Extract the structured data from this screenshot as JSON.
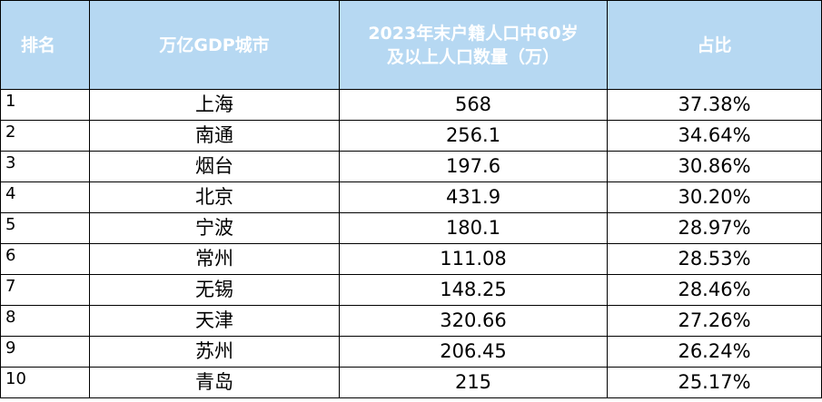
{
  "table": {
    "headers": {
      "rank": "排名",
      "city": "万亿GDP城市",
      "elderly_population_line1": "2023年末户籍人口中60岁",
      "elderly_population_line2": "及以上人口数量（万）",
      "share": "占比"
    },
    "rows": [
      {
        "rank": "1",
        "city": "上海",
        "elderly_population": "568",
        "share": "37.38%"
      },
      {
        "rank": "2",
        "city": "南通",
        "elderly_population": "256.1",
        "share": "34.64%"
      },
      {
        "rank": "3",
        "city": "烟台",
        "elderly_population": "197.6",
        "share": "30.86%"
      },
      {
        "rank": "4",
        "city": "北京",
        "elderly_population": "431.9",
        "share": "30.20%"
      },
      {
        "rank": "5",
        "city": "宁波",
        "elderly_population": "180.1",
        "share": "28.97%"
      },
      {
        "rank": "6",
        "city": "常州",
        "elderly_population": "111.08",
        "share": "28.53%"
      },
      {
        "rank": "7",
        "city": "无锡",
        "elderly_population": "148.25",
        "share": "28.46%"
      },
      {
        "rank": "8",
        "city": "天津",
        "elderly_population": "320.66",
        "share": "27.26%"
      },
      {
        "rank": "9",
        "city": "苏州",
        "elderly_population": "206.45",
        "share": "26.24%"
      },
      {
        "rank": "10",
        "city": "青岛",
        "elderly_population": "215",
        "share": "25.17%"
      }
    ]
  },
  "colors": {
    "header_background": "#b6d8f2",
    "header_text": "#ffffff",
    "border": "#000000",
    "body_text": "#000000"
  }
}
